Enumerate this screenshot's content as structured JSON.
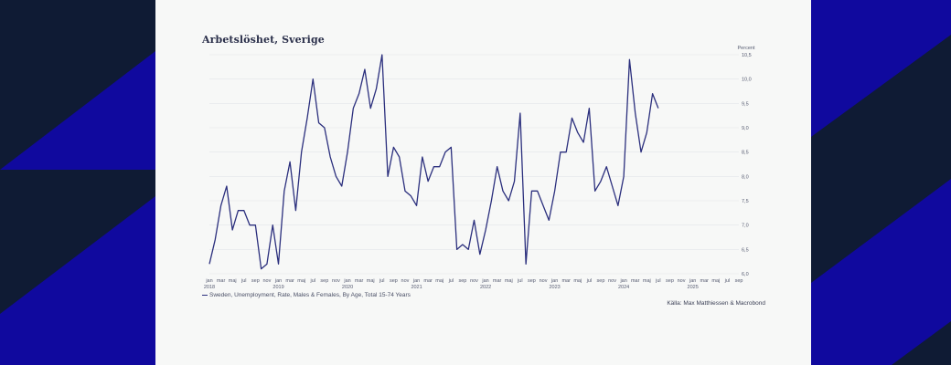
{
  "colors": {
    "background_dark": "#0f1b34",
    "background_blue": "#10099e",
    "panel": "#f7f8f7",
    "line": "#2b2f7d",
    "grid": "#e1e4e8",
    "text": "#2a2f4a"
  },
  "chart_data": {
    "type": "line",
    "title": "Arbetslöshet, Sverige",
    "ylabel": "Percent",
    "ylim": [
      6.0,
      10.5
    ],
    "yticks": [
      "6,0",
      "6,5",
      "7,0",
      "7,5",
      "8,0",
      "8,5",
      "9,0",
      "9,5",
      "10,0",
      "10,5"
    ],
    "grid": true,
    "x_tick_labels": [
      "jan",
      "mar",
      "maj",
      "jul",
      "sep",
      "nov",
      "jan",
      "mar",
      "maj",
      "jul",
      "sep",
      "nov",
      "jan",
      "mar",
      "maj",
      "jul",
      "sep",
      "nov",
      "jan",
      "mar",
      "maj",
      "jul",
      "sep",
      "nov",
      "jan",
      "mar",
      "maj",
      "jul",
      "sep",
      "nov",
      "jan",
      "mar",
      "maj",
      "jul",
      "sep",
      "nov",
      "jan",
      "mar",
      "maj",
      "jul",
      "sep",
      "nov",
      "jan",
      "mar",
      "maj",
      "jul",
      "sep"
    ],
    "year_labels": [
      "2018",
      "2019",
      "2020",
      "2021",
      "2022",
      "2023",
      "2024",
      "2025"
    ],
    "legend_position": "bottom-left",
    "series": [
      {
        "name": "Sweden, Unemployment, Rate, Males & Females, By Age, Total 15-74 Years",
        "start": "2018-01",
        "values": [
          6.2,
          6.7,
          7.4,
          7.8,
          6.9,
          7.3,
          7.3,
          7.0,
          7.0,
          6.1,
          6.2,
          7.0,
          6.2,
          7.7,
          8.3,
          7.3,
          8.5,
          9.2,
          10.0,
          9.1,
          9.0,
          8.4,
          8.0,
          7.8,
          8.5,
          9.4,
          9.7,
          10.2,
          9.4,
          9.8,
          10.5,
          8.0,
          8.6,
          8.4,
          7.7,
          7.6,
          7.4,
          8.4,
          7.9,
          8.2,
          8.2,
          8.5,
          8.6,
          6.5,
          6.6,
          6.5,
          7.1,
          6.4,
          6.9,
          7.5,
          8.2,
          7.7,
          7.5,
          7.9,
          9.3,
          6.2,
          7.7,
          7.7,
          7.4,
          7.1,
          7.7,
          8.5,
          8.5,
          9.2,
          8.9,
          8.7,
          9.4,
          7.7,
          7.9,
          8.2,
          7.8,
          7.4,
          8.0,
          10.4,
          9.3,
          8.5,
          8.9,
          9.7,
          9.4
        ]
      }
    ]
  },
  "source": "Källa: Max Matthiessen & Macrobond"
}
